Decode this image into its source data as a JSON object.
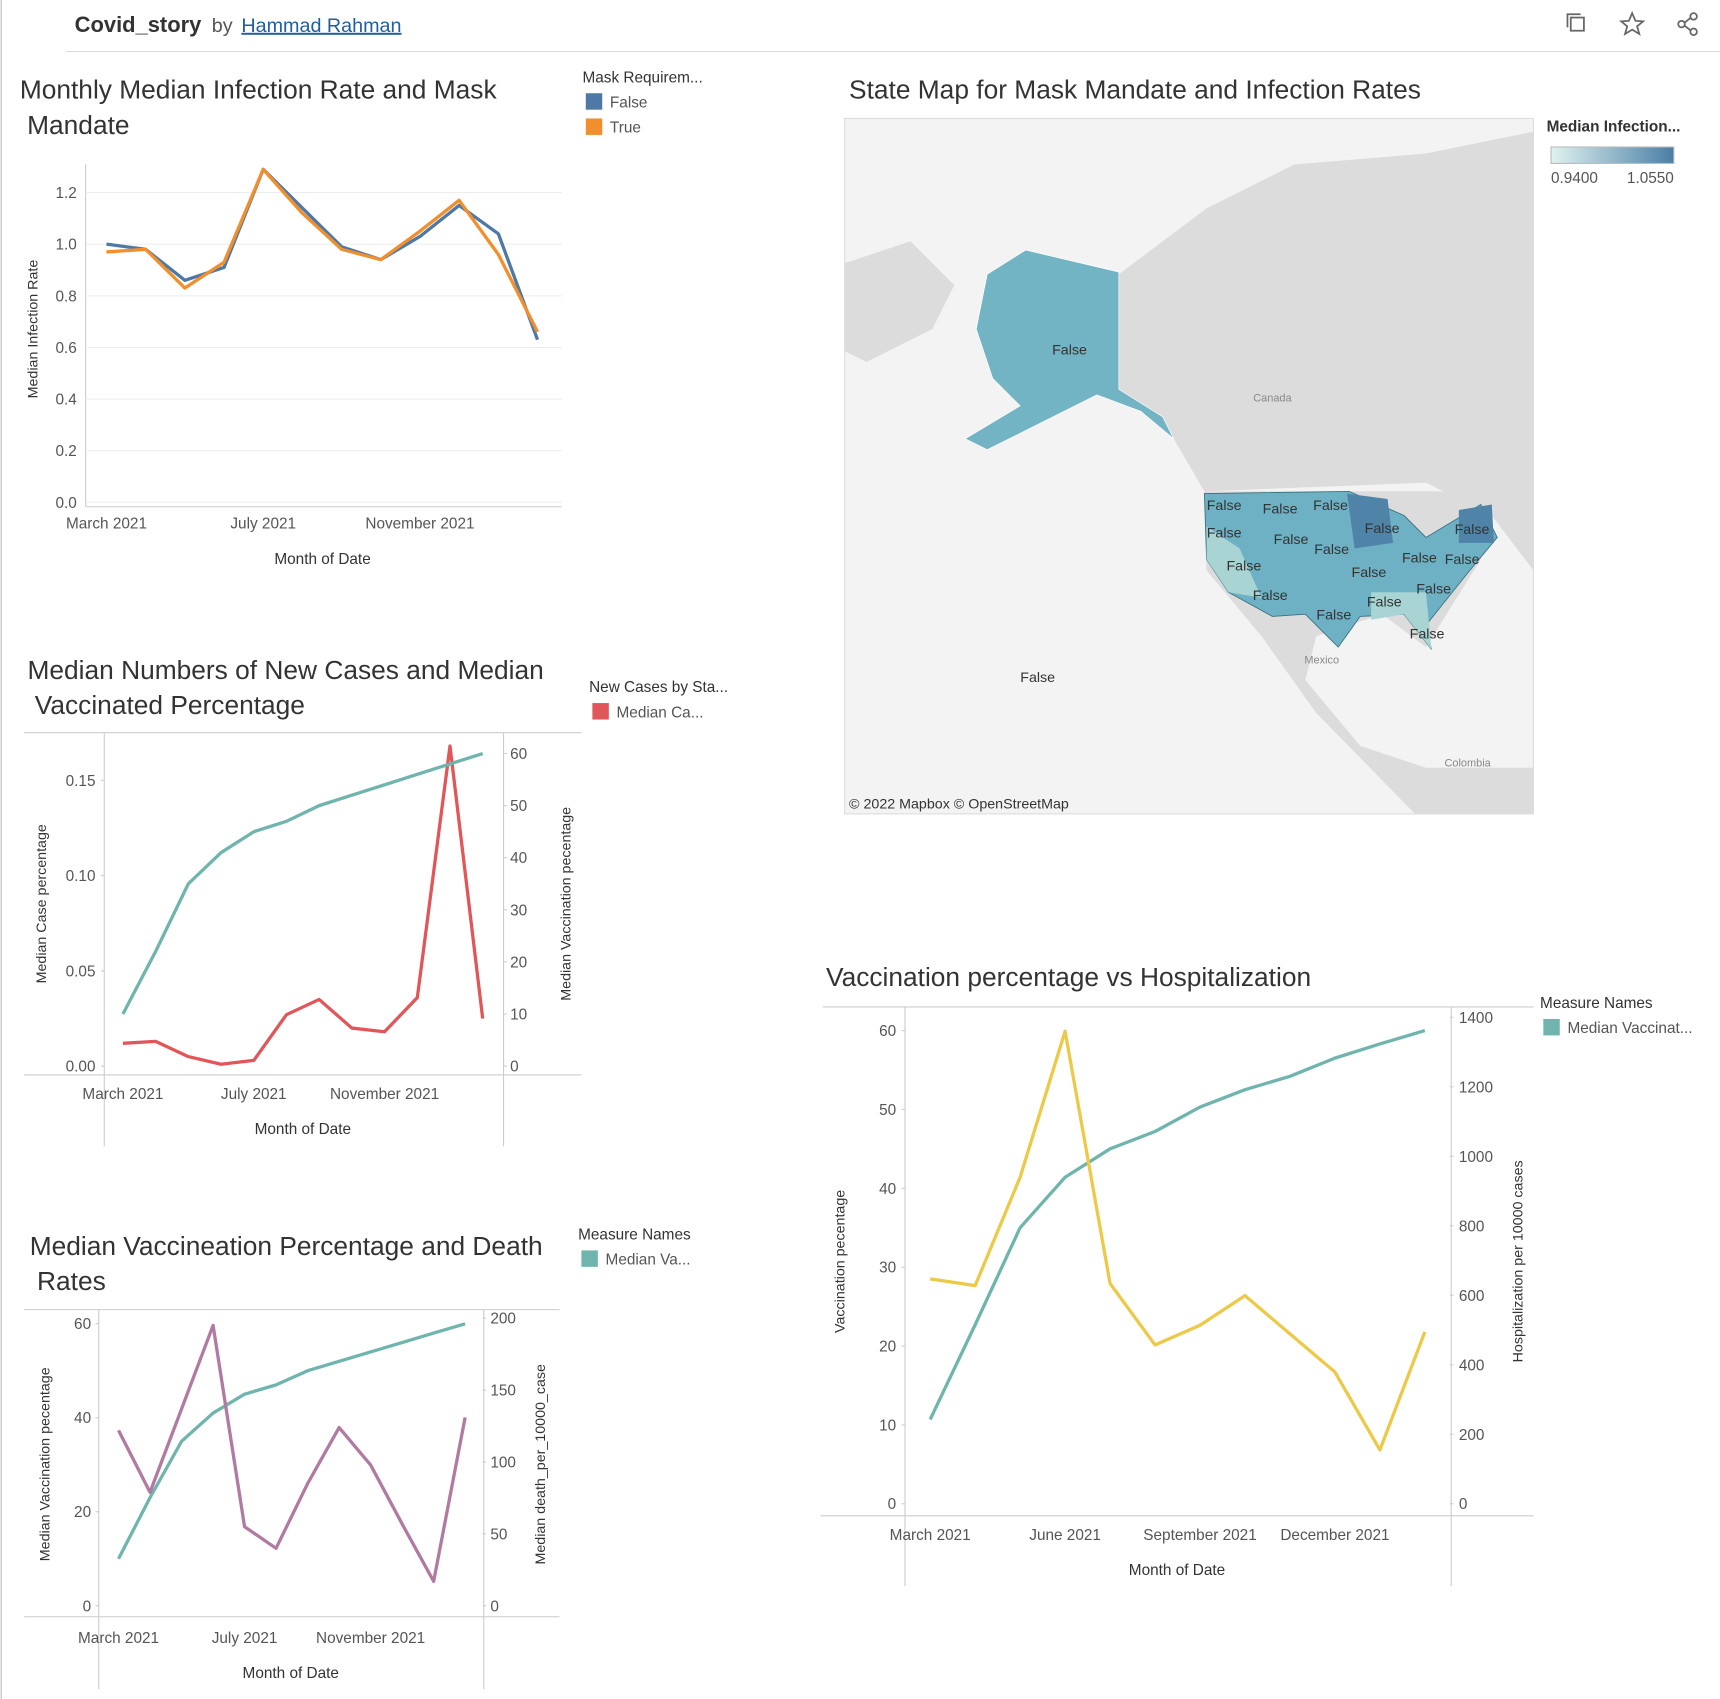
{
  "header": {
    "title": "Covid_story",
    "by": "by",
    "author": "Hammad Rahman"
  },
  "map": {
    "title": "State Map for Mask Mandate and Infection Rates",
    "legend_title": "Median Infection...",
    "legend_min": "0.9400",
    "legend_max": "1.0550",
    "places": [
      "Canada",
      "Mexico",
      "Colombia"
    ],
    "attribution": "© 2022 Mapbox © OpenStreetMap",
    "state_labels": [
      "False",
      "False",
      "False",
      "False",
      "False",
      "False",
      "False",
      "False",
      "False",
      "False",
      "False",
      "False",
      "False",
      "False",
      "False",
      "False",
      "False",
      "False",
      "False"
    ]
  },
  "chart_data": [
    {
      "type": "line",
      "title": "Monthly Median Infection Rate and Mask Mandate",
      "categories": [
        "March 2021",
        null,
        null,
        null,
        "July 2021",
        null,
        null,
        null,
        "November 2021",
        null,
        null,
        null
      ],
      "series": [
        {
          "name": "False",
          "color": "#4e79a7",
          "values": [
            1.0,
            0.98,
            0.86,
            0.91,
            1.29,
            1.14,
            0.99,
            0.94,
            1.03,
            1.15,
            1.04,
            0.63
          ]
        },
        {
          "name": "True",
          "color": "#f28e2b",
          "values": [
            0.97,
            0.98,
            0.83,
            0.93,
            1.29,
            1.12,
            0.98,
            0.94,
            1.05,
            1.17,
            0.96,
            0.66
          ]
        }
      ],
      "ylim": [
        0,
        1.3
      ],
      "yticks": [
        {
          "value": 0,
          "label": "0.0"
        },
        0.2,
        0.4,
        0.6,
        0.8,
        {
          "value": 1,
          "label": "1.0"
        },
        1.2
      ],
      "xlabel": "Month of Date",
      "ylabel": "Median Infection Rate",
      "legend_title": "Mask Requirem...",
      "grid": true
    },
    {
      "type": "line",
      "title": "Median Numbers of New Cases and Median Vaccinated Percentage",
      "categories": [
        "March 2021",
        null,
        null,
        null,
        "July 2021",
        null,
        null,
        null,
        "November 2021",
        null,
        null,
        null
      ],
      "series": [
        {
          "name": "Median Ca...",
          "color": "#e15759",
          "values": [
            0.012,
            0.013,
            0.005,
            0.001,
            0.003,
            0.027,
            0.035,
            0.02,
            0.018,
            0.036,
            0.168,
            0.025
          ]
        },
        {
          "color": "#6fb5ae",
          "axis": "y2",
          "values": [
            10,
            22,
            35,
            41,
            45,
            47,
            50,
            52,
            54,
            56,
            58,
            60
          ]
        }
      ],
      "ylim": [
        0,
        0.175
      ],
      "yticks": [
        {
          "value": 0,
          "label": "0.00"
        },
        0.05,
        {
          "value": 0.1,
          "label": "0.10"
        },
        0.15
      ],
      "y2lim": [
        0,
        64
      ],
      "y2ticks": [
        0,
        10,
        20,
        30,
        40,
        50,
        60
      ],
      "xlabel": "Month of Date",
      "ylabel": "Median Case percentage",
      "y2label": "Median Vaccination pecentage",
      "legend_title": "New Cases by Sta...",
      "grid": false
    },
    {
      "type": "line",
      "title": "Median Vaccineation Percentage and Death Rates",
      "categories": [
        "March 2021",
        null,
        null,
        null,
        "July 2021",
        null,
        null,
        null,
        "November 2021",
        null,
        null,
        null
      ],
      "series": [
        {
          "name": "Median Va...",
          "color": "#6fb5ae",
          "values": [
            10,
            23,
            35,
            41,
            45,
            47,
            50,
            52,
            54,
            56,
            58,
            60
          ]
        },
        {
          "color": "#b07aa1",
          "axis": "y2",
          "values": [
            122,
            79,
            137,
            195,
            55,
            40,
            85,
            124,
            98,
            57,
            17,
            131
          ]
        }
      ],
      "ylim": [
        0,
        63
      ],
      "yticks": [
        0,
        20,
        40,
        60
      ],
      "y2lim": [
        0,
        206
      ],
      "y2ticks": [
        0,
        50,
        100,
        150,
        200
      ],
      "xlabel": "Month of Date",
      "ylabel": "Median Vaccination pecentage",
      "y2label": "Median death_per_10000_case",
      "legend_title": "Measure Names",
      "grid": false
    },
    {
      "type": "line",
      "title": "Vaccination percentage vs Hospitalization",
      "categories": [
        "March 2021",
        null,
        null,
        "June 2021",
        null,
        null,
        "September 2021",
        null,
        null,
        "December 2021",
        null,
        null
      ],
      "series": [
        {
          "name": "Median Vaccinat...",
          "color": "#6fb5ae",
          "values": [
            10.7,
            22.7,
            35,
            41.4,
            45,
            47.2,
            50.3,
            52.5,
            54.2,
            56.5,
            58.3,
            60
          ]
        },
        {
          "color": "#edc948",
          "axis": "y2",
          "values": [
            647,
            628,
            940,
            1360,
            634,
            457,
            514,
            599,
            489,
            379,
            155,
            495
          ]
        }
      ],
      "ylim": [
        0,
        63
      ],
      "yticks": [
        0,
        10,
        20,
        30,
        40,
        50,
        60
      ],
      "y2lim": [
        0,
        1430
      ],
      "y2ticks": [
        0,
        200,
        400,
        600,
        800,
        1000,
        1200,
        1400
      ],
      "xlabel": "Month of Date",
      "ylabel": "Vaccination pecentage",
      "y2label": "Hospitalization per 10000 cases",
      "legend_title": "Measure Names",
      "grid": false
    }
  ]
}
